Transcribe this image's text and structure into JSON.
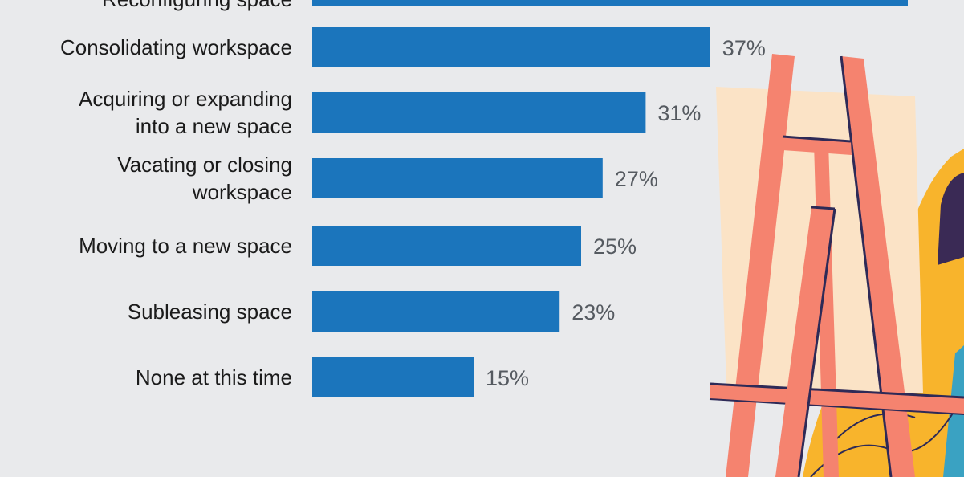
{
  "chart_data": {
    "type": "bar",
    "orientation": "horizontal",
    "categories": [
      [
        "",
        "Reconfiguring space"
      ],
      [
        "Consolidating workspace"
      ],
      [
        "Acquiring or expanding",
        "into a new space"
      ],
      [
        "Vacating or closing",
        "workspace"
      ],
      [
        "Moving to a new space"
      ],
      [
        "Subleasing space"
      ],
      [
        "None at this time"
      ]
    ],
    "values": [
      null,
      37,
      31,
      27,
      25,
      23,
      15
    ],
    "value_labels": [
      "",
      "37%",
      "31%",
      "27%",
      "25%",
      "23%",
      "15%"
    ],
    "unit": "%",
    "xlim": [
      0,
      50
    ],
    "bar_color": "#1b75bc",
    "grid": false,
    "legend": "none"
  },
  "colors": {
    "background": "#e9eaec",
    "bar": "#1b75bc",
    "easel_wood": "#f5836f",
    "easel_outline": "#2e2a57",
    "canvas": "#fbe3c6",
    "mustard": "#f8b42c",
    "teal": "#3aa2c2",
    "plum": "#3a2a55"
  },
  "illustration": {
    "name": "easel-illustration"
  }
}
